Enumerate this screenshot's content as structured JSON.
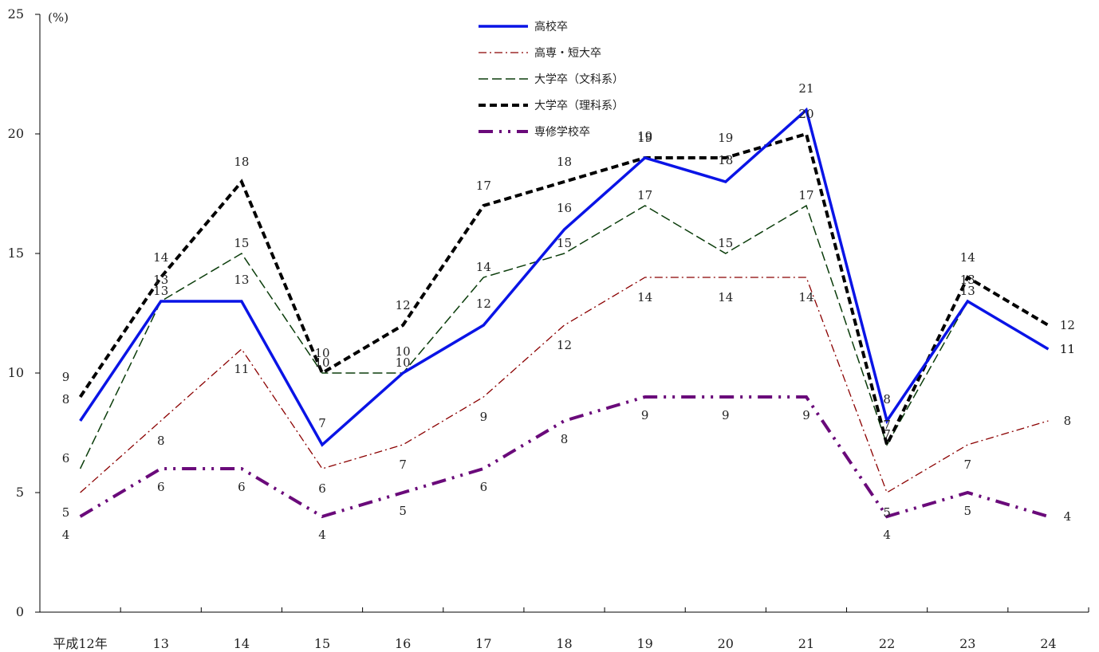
{
  "chart_data": {
    "type": "line",
    "unit_label": "(%)",
    "categories": [
      "平成12年",
      "13",
      "14",
      "15",
      "16",
      "17",
      "18",
      "19",
      "20",
      "21",
      "22",
      "23",
      "24"
    ],
    "ylim": [
      0,
      25
    ],
    "yticks": [
      0,
      5,
      10,
      15,
      20,
      25
    ],
    "grid": false,
    "legend_position": "top-center",
    "series": [
      {
        "name": "高校卒",
        "values": [
          8,
          13,
          13,
          7,
          10,
          12,
          16,
          19,
          18,
          21,
          8,
          13,
          11
        ],
        "color": "#0a14e6",
        "style": "solid"
      },
      {
        "name": "高専・短大卒",
        "values": [
          5,
          8,
          11,
          6,
          7,
          9,
          12,
          14,
          14,
          14,
          5,
          7,
          8
        ],
        "color": "#8b0000",
        "style": "dashdot"
      },
      {
        "name": "大学卒（文科系）",
        "values": [
          6,
          13,
          15,
          10,
          10,
          14,
          15,
          17,
          15,
          17,
          7,
          13,
          11
        ],
        "color": "#0b3d0b",
        "style": "dashed"
      },
      {
        "name": "大学卒（理科系）",
        "values": [
          9,
          14,
          18,
          10,
          12,
          17,
          18,
          19,
          19,
          20,
          7,
          14,
          12
        ],
        "color": "#000000",
        "style": "bold-dashed"
      },
      {
        "name": "専修学校卒",
        "values": [
          4,
          6,
          6,
          4,
          5,
          6,
          8,
          9,
          9,
          9,
          4,
          5,
          4
        ],
        "color": "#6a0a7a",
        "style": "dashdotdot"
      }
    ]
  }
}
